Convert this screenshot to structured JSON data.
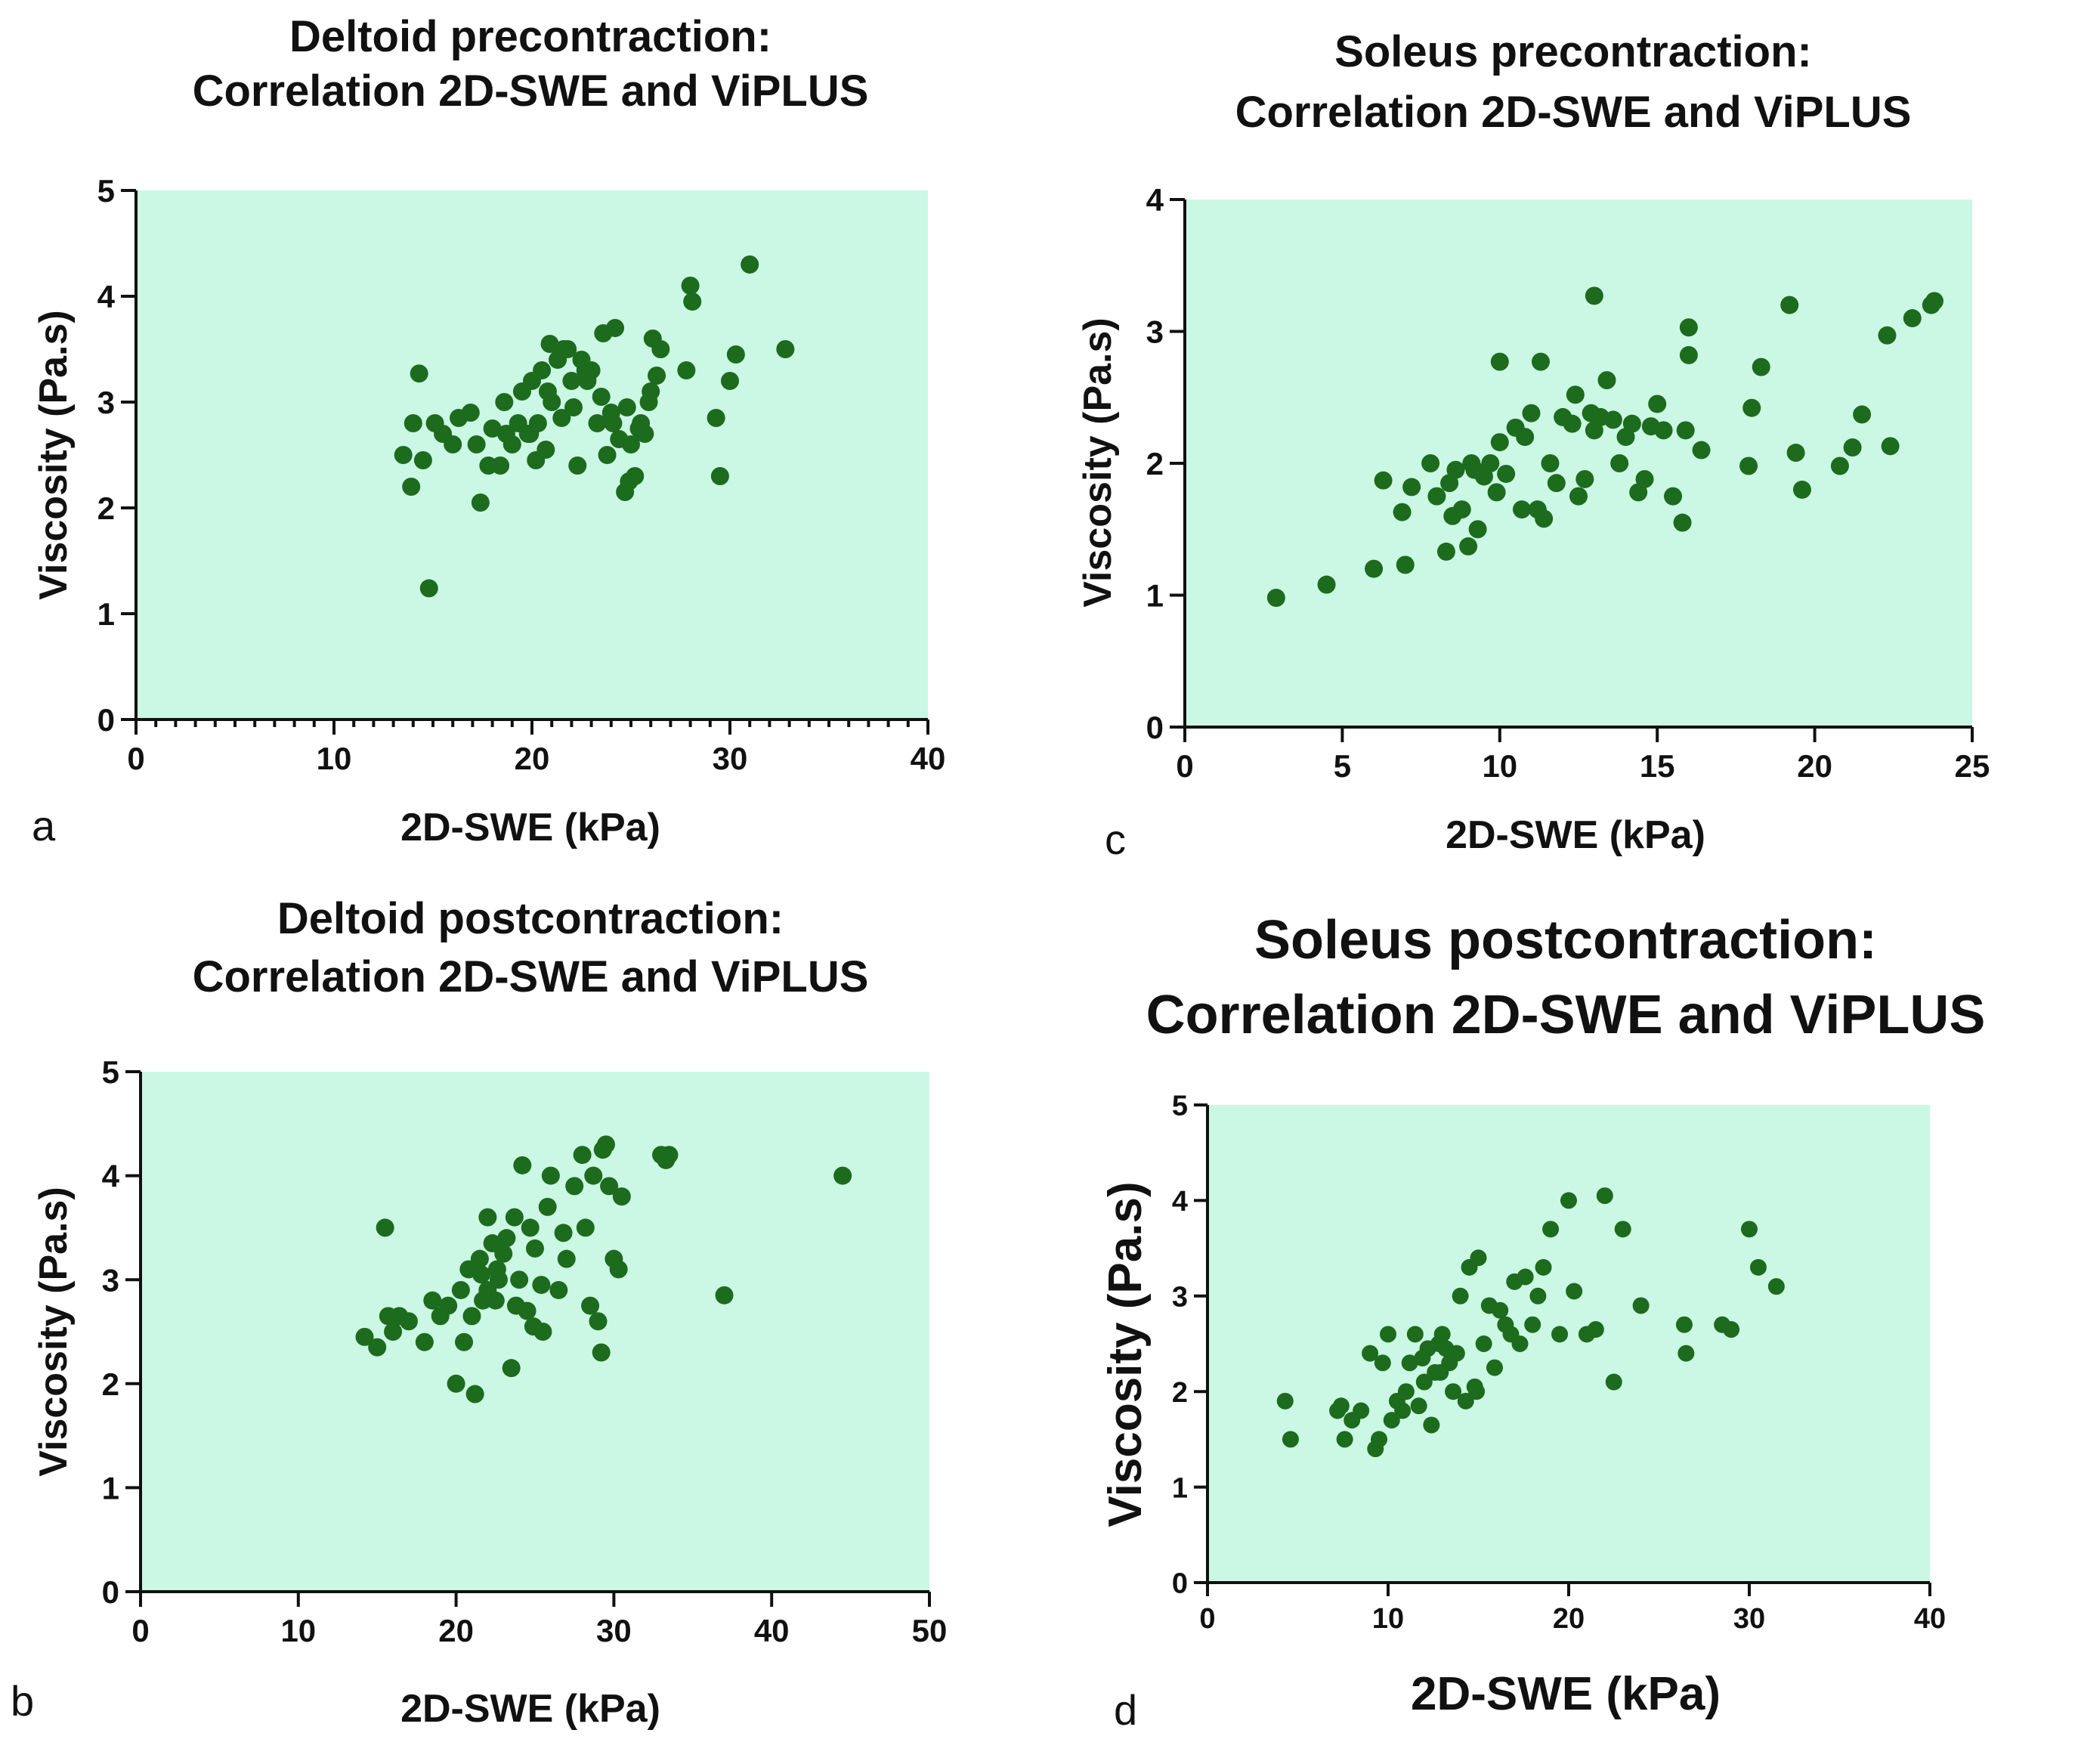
{
  "colors": {
    "plot_background": "#cbf7e5",
    "marker": "#1d6b1d",
    "axis": "#111111"
  },
  "chart_data": [
    {
      "type": "scatter",
      "panel": "a",
      "title": [
        "Deltoid precontraction:",
        "Correlation 2D-SWE and ViPLUS"
      ],
      "xlabel": "2D-SWE (kPa)",
      "ylabel": "Viscosity (Pa.s)",
      "xlim": [
        0,
        40
      ],
      "ylim": [
        0,
        5
      ],
      "xticks": [
        0,
        10,
        20,
        30,
        40
      ],
      "yticks": [
        0,
        1,
        2,
        3,
        4,
        5
      ],
      "x_minor_step": 1,
      "x": [
        13.5,
        13.9,
        14.0,
        14.3,
        14.5,
        14.8,
        15.1,
        15.5,
        16.0,
        16.3,
        16.9,
        17.2,
        17.4,
        17.8,
        18.0,
        18.4,
        18.7,
        19.0,
        19.3,
        19.5,
        19.8,
        20.0,
        20.2,
        20.3,
        20.5,
        20.7,
        20.9,
        21.0,
        21.3,
        21.5,
        21.8,
        22.0,
        22.3,
        22.5,
        22.8,
        23.0,
        23.3,
        23.6,
        23.8,
        24.1,
        24.4,
        24.7,
        24.9,
        25.2,
        25.5,
        25.7,
        25.9,
        26.1,
        26.3,
        24.2,
        22.7,
        21.6,
        26.0,
        26.5,
        25.4,
        24.8,
        27.8,
        28.1,
        28.0,
        29.3,
        29.5,
        30.0,
        30.3,
        31.0,
        32.8,
        20.8,
        18.6,
        24.0,
        25.0,
        23.5,
        22.1,
        19.9
      ],
      "y": [
        2.5,
        2.2,
        2.8,
        3.27,
        2.45,
        1.24,
        2.8,
        2.7,
        2.6,
        2.85,
        2.9,
        2.6,
        2.05,
        2.4,
        2.75,
        2.4,
        2.7,
        2.6,
        2.8,
        3.1,
        2.7,
        3.2,
        2.45,
        2.8,
        3.3,
        2.55,
        3.55,
        3.0,
        3.4,
        2.85,
        3.5,
        3.2,
        2.4,
        3.4,
        3.2,
        3.3,
        2.8,
        3.65,
        2.5,
        2.8,
        2.65,
        2.15,
        2.25,
        2.3,
        2.8,
        2.7,
        3.0,
        3.6,
        3.25,
        3.7,
        3.3,
        3.5,
        3.1,
        3.5,
        2.75,
        2.95,
        3.3,
        3.95,
        4.1,
        2.85,
        2.3,
        3.2,
        3.45,
        4.3,
        3.5,
        3.1,
        3.0,
        2.9,
        2.6,
        3.05,
        2.95,
        2.7
      ]
    },
    {
      "type": "scatter",
      "panel": "b",
      "title": [
        "Deltoid postcontraction:",
        "Correlation 2D-SWE and ViPLUS"
      ],
      "xlabel": "2D-SWE (kPa)",
      "ylabel": "Viscosity (Pa.s)",
      "xlim": [
        0,
        50
      ],
      "ylim": [
        0,
        5
      ],
      "xticks": [
        0,
        10,
        20,
        30,
        40,
        50
      ],
      "yticks": [
        0,
        1,
        2,
        3,
        4,
        5
      ],
      "x": [
        14.2,
        15.0,
        15.5,
        15.7,
        16.0,
        16.4,
        17.0,
        18.0,
        18.5,
        19.0,
        19.5,
        20.0,
        20.3,
        20.5,
        20.8,
        21.0,
        21.2,
        21.5,
        21.7,
        22.0,
        22.0,
        22.3,
        22.5,
        22.7,
        23.0,
        23.2,
        23.5,
        23.7,
        24.0,
        24.2,
        24.5,
        24.7,
        25.0,
        25.5,
        25.8,
        26.0,
        26.5,
        27.0,
        27.5,
        28.0,
        28.2,
        28.5,
        28.7,
        29.0,
        29.2,
        29.5,
        29.7,
        30.0,
        30.3,
        30.5,
        33.0,
        33.3,
        33.5,
        37.0,
        44.5,
        21.6,
        23.8,
        22.6,
        25.4,
        26.8,
        29.3,
        24.9
      ],
      "y": [
        2.45,
        2.35,
        3.5,
        2.65,
        2.5,
        2.65,
        2.6,
        2.4,
        2.8,
        2.65,
        2.75,
        2.0,
        2.9,
        2.4,
        3.1,
        2.65,
        1.9,
        3.2,
        2.8,
        2.9,
        3.6,
        3.35,
        2.8,
        3.0,
        3.25,
        3.4,
        2.15,
        3.6,
        3.0,
        4.1,
        2.7,
        3.5,
        3.3,
        2.5,
        3.7,
        4.0,
        2.9,
        3.2,
        3.9,
        4.2,
        3.5,
        2.75,
        4.0,
        2.6,
        2.3,
        4.3,
        3.9,
        3.2,
        3.1,
        3.8,
        4.2,
        4.15,
        4.2,
        2.85,
        4.0,
        3.05,
        2.75,
        3.1,
        2.95,
        3.45,
        4.25,
        2.55
      ]
    },
    {
      "type": "scatter",
      "panel": "c",
      "title": [
        "Soleus precontraction:",
        "Correlation 2D-SWE and ViPLUS"
      ],
      "xlabel": "2D-SWE (kPa)",
      "ylabel": "Viscosity (Pa.s)",
      "xlim": [
        0,
        25
      ],
      "ylim": [
        0,
        4
      ],
      "xticks": [
        0,
        5,
        10,
        15,
        20,
        25
      ],
      "yticks": [
        0,
        1,
        2,
        3,
        4
      ],
      "x": [
        2.9,
        4.5,
        6.0,
        6.3,
        6.9,
        7.0,
        7.2,
        7.8,
        8.0,
        8.3,
        8.5,
        8.6,
        8.8,
        9.0,
        9.1,
        9.3,
        9.5,
        9.7,
        9.9,
        10.0,
        10.0,
        10.2,
        10.5,
        10.7,
        11.0,
        11.2,
        11.4,
        11.6,
        11.8,
        12.0,
        12.3,
        12.5,
        12.7,
        12.9,
        13.0,
        13.2,
        13.4,
        13.6,
        13.8,
        14.0,
        14.2,
        14.4,
        14.6,
        14.8,
        15.0,
        15.2,
        15.5,
        15.8,
        16.0,
        16.0,
        16.4,
        17.9,
        18.0,
        18.3,
        19.2,
        19.4,
        19.6,
        20.8,
        21.2,
        21.5,
        22.3,
        22.4,
        23.1,
        23.7,
        23.8,
        13.0,
        11.3,
        12.4,
        10.8,
        9.2,
        8.4,
        15.9
      ],
      "y": [
        0.98,
        1.08,
        1.2,
        1.87,
        1.63,
        1.23,
        1.82,
        2.0,
        1.75,
        1.33,
        1.6,
        1.95,
        1.65,
        1.37,
        2.0,
        1.5,
        1.9,
        2.0,
        1.78,
        2.16,
        2.77,
        1.92,
        2.27,
        1.65,
        2.38,
        1.65,
        1.58,
        2.0,
        1.85,
        2.35,
        2.3,
        1.75,
        1.88,
        2.38,
        3.27,
        2.35,
        2.63,
        2.33,
        2.0,
        2.2,
        2.3,
        1.78,
        1.88,
        2.28,
        2.45,
        2.25,
        1.75,
        1.55,
        2.82,
        3.03,
        2.1,
        1.98,
        2.42,
        2.73,
        3.2,
        2.08,
        1.8,
        1.98,
        2.12,
        2.37,
        2.97,
        2.13,
        3.1,
        3.2,
        3.23,
        2.25,
        2.77,
        2.52,
        2.2,
        1.95,
        1.85,
        2.25
      ]
    },
    {
      "type": "scatter",
      "panel": "d",
      "title": [
        "Soleus postcontraction:",
        "Correlation 2D-SWE and ViPLUS"
      ],
      "xlabel": "2D-SWE (kPa)",
      "ylabel": "Viscosity (Pa.s)",
      "xlim": [
        0,
        40
      ],
      "ylim": [
        0,
        5
      ],
      "xticks": [
        0,
        10,
        20,
        30,
        40
      ],
      "yticks": [
        0,
        1,
        2,
        3,
        4,
        5
      ],
      "x": [
        4.3,
        4.6,
        7.2,
        7.4,
        7.6,
        8.0,
        8.5,
        9.0,
        9.3,
        9.5,
        9.7,
        10.0,
        10.2,
        10.5,
        10.8,
        11.0,
        11.2,
        11.5,
        11.7,
        12.0,
        12.2,
        12.4,
        12.6,
        12.8,
        13.0,
        13.2,
        13.4,
        13.6,
        13.8,
        14.0,
        14.3,
        14.5,
        14.8,
        15.0,
        15.3,
        15.6,
        15.9,
        16.2,
        16.5,
        17.0,
        17.3,
        17.6,
        18.0,
        18.3,
        18.6,
        19.0,
        19.5,
        20.0,
        20.3,
        21.0,
        21.5,
        22.0,
        22.5,
        23.0,
        24.0,
        26.5,
        26.4,
        28.5,
        29.0,
        30.0,
        30.5,
        31.5,
        14.9,
        16.8,
        11.9,
        12.9
      ],
      "y": [
        1.9,
        1.5,
        1.8,
        1.85,
        1.5,
        1.7,
        1.8,
        2.4,
        1.4,
        1.5,
        2.3,
        2.6,
        1.7,
        1.9,
        1.8,
        2.0,
        2.3,
        2.6,
        1.85,
        2.1,
        2.45,
        1.65,
        2.2,
        2.5,
        2.6,
        2.45,
        2.3,
        2.0,
        2.4,
        3.0,
        1.9,
        3.3,
        2.05,
        3.4,
        2.5,
        2.9,
        2.25,
        2.85,
        2.7,
        3.15,
        2.5,
        3.2,
        2.7,
        3.0,
        3.3,
        3.7,
        2.6,
        4.0,
        3.05,
        2.6,
        2.65,
        4.05,
        2.1,
        3.7,
        2.9,
        2.4,
        2.7,
        2.7,
        2.65,
        3.7,
        3.3,
        3.1,
        2.0,
        2.6,
        2.35,
        2.2
      ]
    }
  ]
}
